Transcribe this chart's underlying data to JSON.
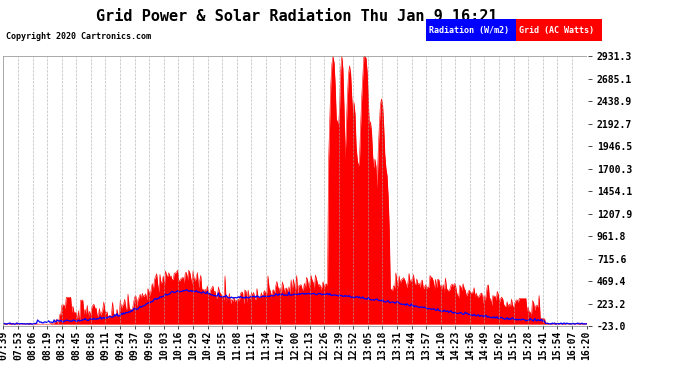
{
  "title": "Grid Power & Solar Radiation Thu Jan 9 16:21",
  "copyright_text": "Copyright 2020 Cartronics.com",
  "legend_labels": [
    "Radiation (W/m2)",
    "Grid (AC Watts)"
  ],
  "legend_bg_colors": [
    "blue",
    "red"
  ],
  "yticks": [
    -23.0,
    223.2,
    469.4,
    715.6,
    961.8,
    1207.9,
    1454.1,
    1700.3,
    1946.5,
    2192.7,
    2438.9,
    2685.1,
    2931.3
  ],
  "ylim": [
    -23.0,
    2931.3
  ],
  "background_color": "#ffffff",
  "plot_bg_color": "#ffffff",
  "grid_color": "#aaaaaa",
  "title_fontsize": 11,
  "tick_fontsize": 7,
  "radiation_color": "blue",
  "grid_power_color": "red",
  "x_labels": [
    "07:39",
    "07:53",
    "08:06",
    "08:19",
    "08:32",
    "08:45",
    "08:58",
    "09:11",
    "09:24",
    "09:37",
    "09:50",
    "10:03",
    "10:16",
    "10:29",
    "10:42",
    "10:55",
    "11:08",
    "11:21",
    "11:34",
    "11:47",
    "12:00",
    "12:13",
    "12:26",
    "12:39",
    "12:52",
    "13:05",
    "13:18",
    "13:31",
    "13:44",
    "13:57",
    "14:10",
    "14:23",
    "14:36",
    "14:49",
    "15:02",
    "15:15",
    "15:28",
    "15:41",
    "15:54",
    "16:07",
    "16:20"
  ]
}
